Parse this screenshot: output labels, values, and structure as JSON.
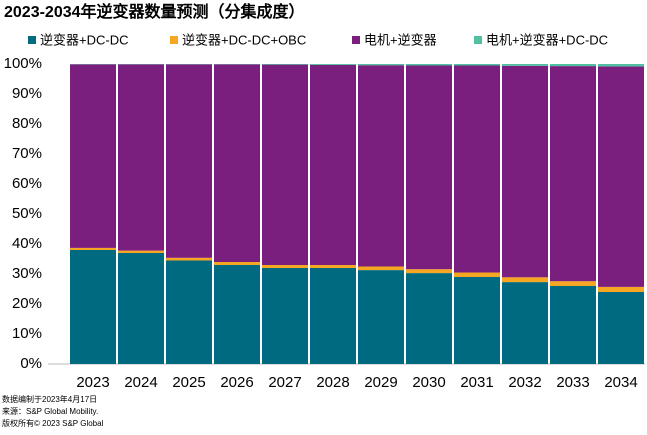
{
  "chart_data": {
    "type": "stacked-bar",
    "title": "2023-2034年逆变器数量预测（分集成度）",
    "categories": [
      "2023",
      "2024",
      "2025",
      "2026",
      "2027",
      "2028",
      "2029",
      "2030",
      "2031",
      "2032",
      "2033",
      "2034"
    ],
    "series": [
      {
        "name": "逆变器+DC-DC",
        "color": "#006a80",
        "values": [
          38,
          37,
          34.5,
          33,
          32,
          32,
          31.3,
          30.3,
          29,
          27.3,
          26,
          24
        ]
      },
      {
        "name": "逆变器+DC-DC+OBC",
        "color": "#f5a623",
        "values": [
          0.7,
          0.8,
          0.9,
          1,
          1,
          1,
          1.2,
          1.3,
          1.5,
          1.6,
          1.6,
          1.7
        ]
      },
      {
        "name": "电机+逆变器",
        "color": "#7b1f7e",
        "values": [
          61.2,
          62.1,
          64.5,
          65.9,
          66.8,
          66.7,
          67.1,
          67.9,
          69,
          70.5,
          71.7,
          73.5
        ]
      },
      {
        "name": "电机+逆变器+DC-DC",
        "color": "#4fc1a0",
        "values": [
          0.1,
          0.1,
          0.1,
          0.1,
          0.2,
          0.3,
          0.4,
          0.5,
          0.5,
          0.6,
          0.7,
          0.8
        ]
      }
    ],
    "ylim": [
      0,
      100
    ],
    "yticks": [
      {
        "value": 0,
        "label": "0%"
      },
      {
        "value": 10,
        "label": "10%"
      },
      {
        "value": 20,
        "label": "20%"
      },
      {
        "value": 30,
        "label": "30%"
      },
      {
        "value": 40,
        "label": "40%"
      },
      {
        "value": 50,
        "label": "50%"
      },
      {
        "value": 60,
        "label": "60%"
      },
      {
        "value": 70,
        "label": "70%"
      },
      {
        "value": 80,
        "label": "80%"
      },
      {
        "value": 90,
        "label": "90%"
      },
      {
        "value": 100,
        "label": "100%"
      }
    ],
    "footnotes": [
      "数据编制于2023年4月17日",
      "来源：S&P Global Mobility.",
      "版权所有© 2023 S&P Global"
    ]
  }
}
